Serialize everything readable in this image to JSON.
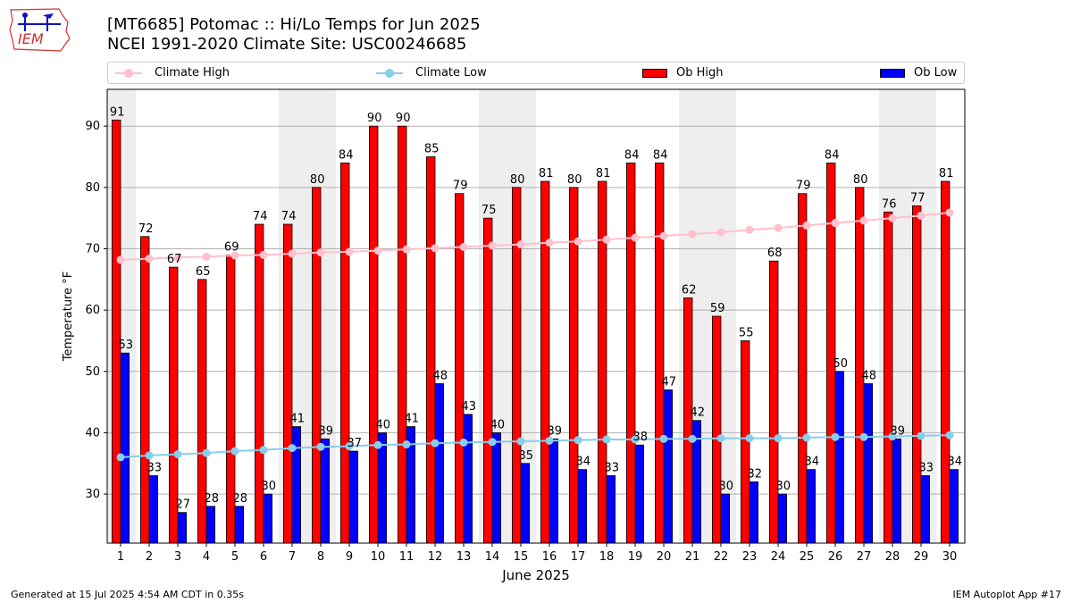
{
  "title_line1": "[MT6685] Potomac :: Hi/Lo Temps for Jun 2025",
  "title_line2": "NCEI 1991-2020 Climate Site: USC00246685",
  "logo_text": "IEM",
  "footer_left": "Generated at 15 Jul 2025 4:54 AM CDT in 0.35s",
  "footer_right": "IEM Autoplot App #17",
  "colors": {
    "ob_high": "#ff0000",
    "ob_low": "#0000ff",
    "climate_high": "#ffc0cb",
    "climate_low": "#87ceeb",
    "weekend_shade": "#eeeeee",
    "grid": "#b0b0b0"
  },
  "legend": [
    {
      "label": "Climate High",
      "kind": "line",
      "color": "#ffc0cb"
    },
    {
      "label": "Climate Low",
      "kind": "line",
      "color": "#87ceeb"
    },
    {
      "label": "Ob High",
      "kind": "box",
      "color": "#ff0000"
    },
    {
      "label": "Ob Low",
      "kind": "box",
      "color": "#0000ff"
    }
  ],
  "chart_data": {
    "type": "bar",
    "xlabel": "June 2025",
    "ylabel": "Temperature °F",
    "ylim": [
      22,
      96
    ],
    "yticks": [
      30,
      40,
      50,
      60,
      70,
      80,
      90
    ],
    "grid": "horizontal",
    "legend_placement": "top",
    "shaded_days": [
      1,
      7,
      8,
      14,
      15,
      21,
      22,
      28,
      29
    ],
    "categories": [
      "1",
      "2",
      "3",
      "4",
      "5",
      "6",
      "7",
      "8",
      "9",
      "10",
      "11",
      "12",
      "13",
      "14",
      "15",
      "16",
      "17",
      "18",
      "19",
      "20",
      "21",
      "22",
      "23",
      "24",
      "25",
      "26",
      "27",
      "28",
      "29",
      "30"
    ],
    "series": [
      {
        "name": "Ob High",
        "kind": "bar",
        "values": [
          91,
          72,
          67,
          65,
          69,
          74,
          74,
          80,
          84,
          90,
          90,
          85,
          79,
          75,
          80,
          81,
          80,
          81,
          84,
          84,
          62,
          59,
          55,
          68,
          79,
          84,
          80,
          76,
          77,
          81
        ]
      },
      {
        "name": "Ob Low",
        "kind": "bar",
        "values": [
          53,
          33,
          27,
          28,
          28,
          30,
          41,
          39,
          37,
          40,
          41,
          48,
          43,
          40,
          35,
          39,
          34,
          33,
          38,
          47,
          42,
          30,
          32,
          30,
          34,
          50,
          48,
          39,
          33,
          34
        ]
      },
      {
        "name": "Climate High",
        "kind": "line",
        "values": [
          68.2,
          68.4,
          68.6,
          68.7,
          68.9,
          69.0,
          69.2,
          69.4,
          69.5,
          69.7,
          69.9,
          70.1,
          70.3,
          70.5,
          70.7,
          71.0,
          71.2,
          71.5,
          71.8,
          72.1,
          72.4,
          72.7,
          73.1,
          73.4,
          73.8,
          74.2,
          74.6,
          75.0,
          75.4,
          75.9
        ]
      },
      {
        "name": "Climate Low",
        "kind": "line",
        "values": [
          36.0,
          36.3,
          36.5,
          36.7,
          37.0,
          37.2,
          37.5,
          37.7,
          37.8,
          38.0,
          38.1,
          38.3,
          38.4,
          38.5,
          38.6,
          38.7,
          38.8,
          38.9,
          38.9,
          39.0,
          39.0,
          39.1,
          39.1,
          39.1,
          39.2,
          39.3,
          39.3,
          39.4,
          39.5,
          39.6
        ]
      }
    ]
  }
}
